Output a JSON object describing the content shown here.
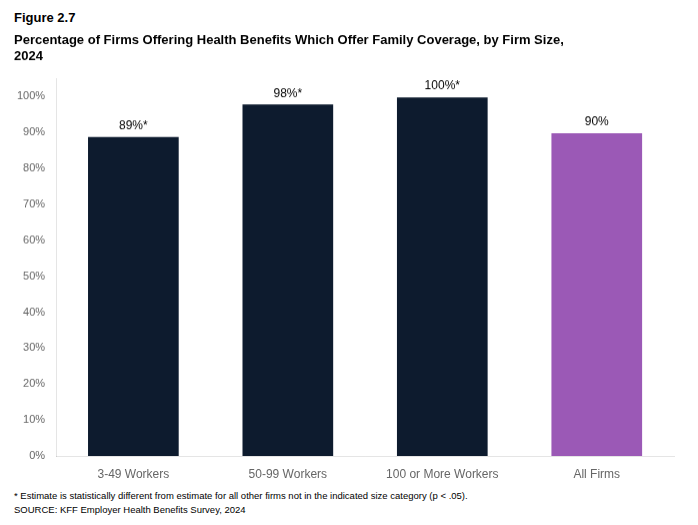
{
  "chart_data": {
    "type": "bar",
    "title": [
      "Percentage of Firms Offering Health Benefits Which Offer Family Coverage, by Firm Size,",
      "2024"
    ],
    "annotations": [
      "Figure 2.7",
      "* Estimate is statistically different from estimate for all other firms not in the indicated size category (p < .05).",
      "SOURCE: KFF Employer Health Benefits Survey, 2024"
    ],
    "categories": [
      "3-49 Workers",
      "50-99 Workers",
      "100 or More Workers",
      "All Firms"
    ],
    "values": [
      89,
      98,
      100,
      90
    ],
    "value_labels": [
      "89%*",
      "98%*",
      "100%*",
      "90%"
    ],
    "data_labels": true,
    "colors": [
      "#0d1b2e",
      "#0d1b2e",
      "#0d1b2e",
      "#9b59b6"
    ],
    "ylim": [
      0,
      105
    ],
    "yticks": [
      {
        "value": 0,
        "label": "0%"
      },
      {
        "value": 10,
        "label": "10%"
      },
      {
        "value": 20,
        "label": "20%"
      },
      {
        "value": 30,
        "label": "30%"
      },
      {
        "value": 40,
        "label": "40%"
      },
      {
        "value": 50,
        "label": "50%"
      },
      {
        "value": 60,
        "label": "60%"
      },
      {
        "value": 70,
        "label": "70%"
      },
      {
        "value": 80,
        "label": "80%"
      },
      {
        "value": 90,
        "label": "90%"
      },
      {
        "value": 100,
        "label": "100%"
      }
    ],
    "grid": false,
    "legend": false
  }
}
